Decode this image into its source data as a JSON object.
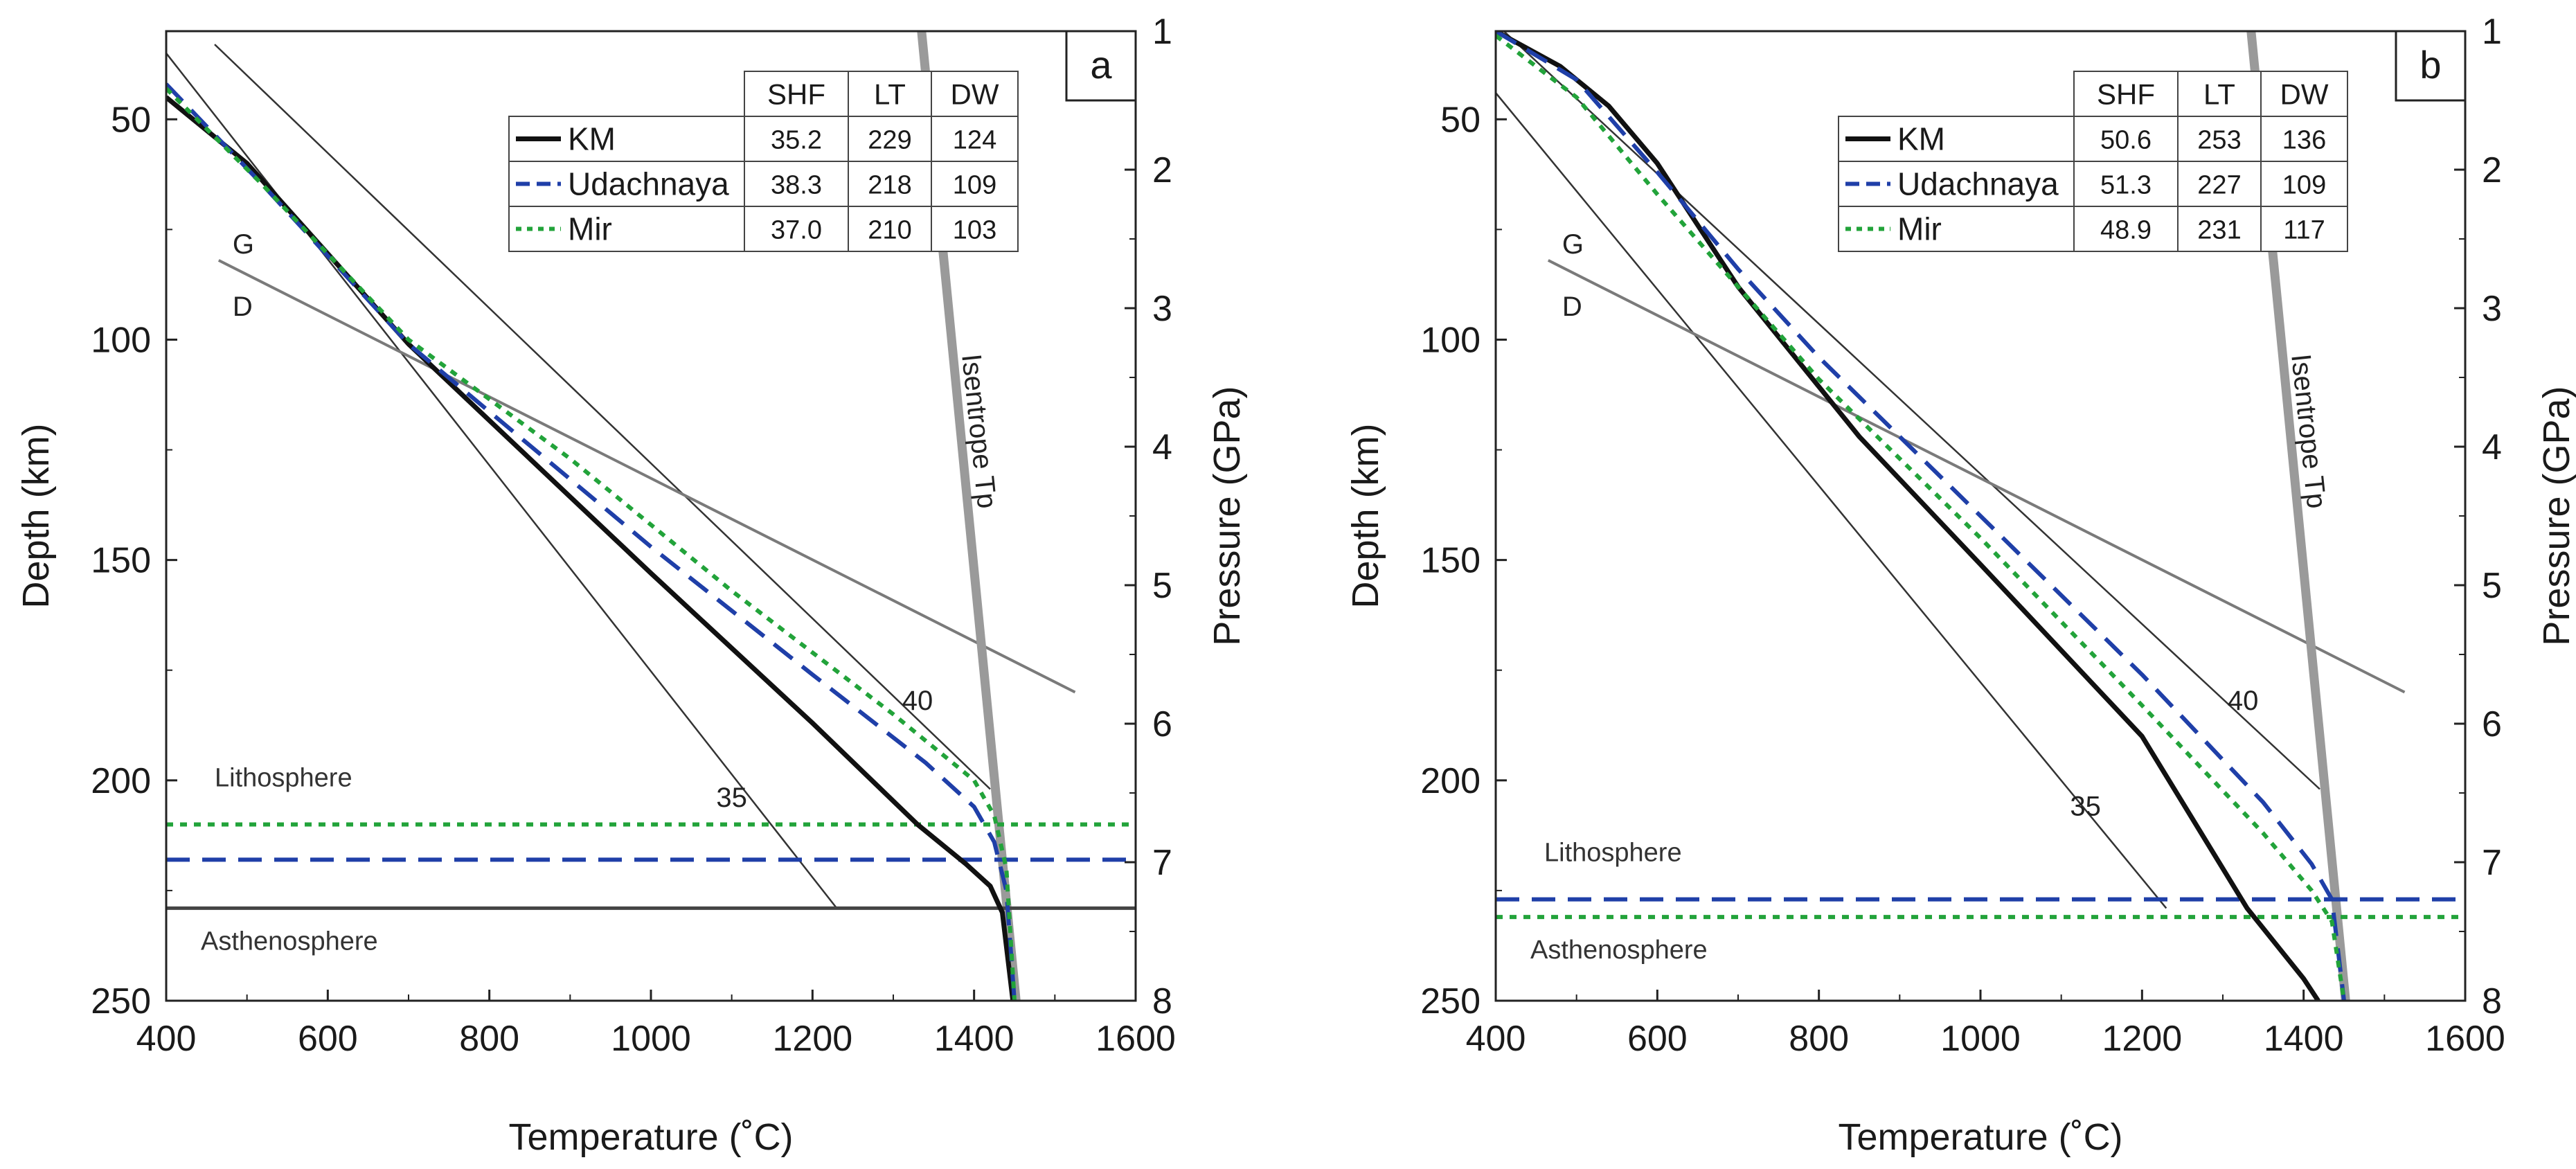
{
  "figure": {
    "axis_x_title": "Temperature (˚C)",
    "axis_y_left_title": "Depth (km)",
    "axis_y_right_title": "Pressure (GPa)"
  },
  "colors": {
    "KM": "#111111",
    "Udachnaya": "#1f3fa8",
    "Mir": "#22a33a",
    "adiabat": "#9a9a9a",
    "geotherm_ref": "#333333",
    "graphite_diamond": "#7a7a7a"
  },
  "chart_data": [
    {
      "type": "line",
      "panel": "a",
      "xlim": [
        400,
        1600
      ],
      "ylim_depth_km": [
        250,
        30
      ],
      "ylim_pressure_gpa": [
        8,
        1
      ],
      "x_ticks": [
        400,
        600,
        800,
        1000,
        1200,
        1400,
        1600
      ],
      "y_ticks_depth": [
        50,
        100,
        150,
        200,
        250
      ],
      "y_ticks_pressure": [
        1,
        2,
        3,
        4,
        5,
        6,
        7,
        8
      ],
      "legend": {
        "headers": [
          "SHF",
          "LT",
          "DW"
        ],
        "rows": [
          {
            "name": "KM",
            "style": "solid",
            "shf": "35.2",
            "lt": "229",
            "dw": "124"
          },
          {
            "name": "Udachnaya",
            "style": "dashed",
            "shf": "38.3",
            "lt": "218",
            "dw": "109"
          },
          {
            "name": "Mir",
            "style": "dotted",
            "shf": "37.0",
            "lt": "210",
            "dw": "103"
          }
        ]
      },
      "series": [
        {
          "name": "KM",
          "points": [
            [
              400,
              45
            ],
            [
              500,
              60
            ],
            [
              700,
              101
            ],
            [
              1000,
              153
            ],
            [
              1200,
              187
            ],
            [
              1330,
              210
            ],
            [
              1390,
              219
            ],
            [
              1420,
              224
            ],
            [
              1435,
              230
            ],
            [
              1448,
              250
            ]
          ]
        },
        {
          "name": "Udachnaya",
          "points": [
            [
              400,
              42
            ],
            [
              520,
              65
            ],
            [
              700,
              101
            ],
            [
              1000,
              147
            ],
            [
              1200,
              176
            ],
            [
              1340,
              196
            ],
            [
              1400,
              206
            ],
            [
              1425,
              214
            ],
            [
              1440,
              225
            ],
            [
              1450,
              250
            ]
          ]
        },
        {
          "name": "Mir",
          "points": [
            [
              400,
              43
            ],
            [
              520,
              65
            ],
            [
              700,
              100
            ],
            [
              900,
              127
            ],
            [
              1100,
              157
            ],
            [
              1300,
              185
            ],
            [
              1400,
              200
            ],
            [
              1425,
              208
            ],
            [
              1440,
              220
            ],
            [
              1450,
              250
            ]
          ]
        }
      ],
      "lab_lines": [
        {
          "series": "Mir",
          "depth_km": 210
        },
        {
          "series": "Udachnaya",
          "depth_km": 218
        },
        {
          "series": "KM",
          "depth_km": 229
        }
      ],
      "reference_geotherms": [
        {
          "label": "35",
          "points": [
            [
              400,
              35
            ],
            [
              1230,
              229
            ]
          ],
          "label_at": [
            1100,
            206
          ]
        },
        {
          "label": "40",
          "points": [
            [
              460,
              33
            ],
            [
              1420,
              202
            ]
          ],
          "label_at": [
            1330,
            184
          ]
        }
      ],
      "graphite_diamond": {
        "points": [
          [
            465,
            82
          ],
          [
            1525,
            180
          ]
        ],
        "labels": [
          "G",
          "D"
        ]
      },
      "isentrope": {
        "label": "Isentrope Tp",
        "points": [
          [
            1335,
            30
          ],
          [
            1452,
            250
          ]
        ]
      },
      "annotations": {
        "lithosphere": "Lithosphere",
        "asthenosphere": "Asthenosphere"
      }
    },
    {
      "type": "line",
      "panel": "b",
      "xlim": [
        400,
        1600
      ],
      "ylim_depth_km": [
        250,
        30
      ],
      "ylim_pressure_gpa": [
        8,
        1
      ],
      "x_ticks": [
        400,
        600,
        800,
        1000,
        1200,
        1400,
        1600
      ],
      "y_ticks_depth": [
        50,
        100,
        150,
        200,
        250
      ],
      "y_ticks_pressure": [
        1,
        2,
        3,
        4,
        5,
        6,
        7,
        8
      ],
      "legend": {
        "headers": [
          "SHF",
          "LT",
          "DW"
        ],
        "rows": [
          {
            "name": "KM",
            "style": "solid",
            "shf": "50.6",
            "lt": "253",
            "dw": "136"
          },
          {
            "name": "Udachnaya",
            "style": "dashed",
            "shf": "51.3",
            "lt": "227",
            "dw": "109"
          },
          {
            "name": "Mir",
            "style": "dotted",
            "shf": "48.9",
            "lt": "231",
            "dw": "117"
          }
        ]
      },
      "series": [
        {
          "name": "KM",
          "points": [
            [
              400,
              30
            ],
            [
              480,
              38
            ],
            [
              540,
              47
            ],
            [
              600,
              60
            ],
            [
              700,
              88
            ],
            [
              850,
              122
            ],
            [
              1000,
              151
            ],
            [
              1200,
              190
            ],
            [
              1330,
              229
            ],
            [
              1400,
              245
            ],
            [
              1418,
              250
            ]
          ]
        },
        {
          "name": "Udachnaya",
          "points": [
            [
              400,
              30
            ],
            [
              500,
              41
            ],
            [
              600,
              62
            ],
            [
              700,
              84
            ],
            [
              800,
              104
            ],
            [
              1000,
              140
            ],
            [
              1200,
              176
            ],
            [
              1350,
              205
            ],
            [
              1410,
              219
            ],
            [
              1435,
              227
            ],
            [
              1450,
              250
            ]
          ]
        },
        {
          "name": "Mir",
          "points": [
            [
              400,
              31
            ],
            [
              500,
              45
            ],
            [
              600,
              67
            ],
            [
              700,
              88
            ],
            [
              800,
              109
            ],
            [
              1000,
              145
            ],
            [
              1200,
              183
            ],
            [
              1350,
              212
            ],
            [
              1410,
              225
            ],
            [
              1435,
              232
            ],
            [
              1450,
              250
            ]
          ]
        }
      ],
      "lab_lines": [
        {
          "series": "Udachnaya",
          "depth_km": 227
        },
        {
          "series": "Mir",
          "depth_km": 231
        }
      ],
      "reference_geotherms": [
        {
          "label": "35",
          "points": [
            [
              400,
              44
            ],
            [
              1230,
              229
            ]
          ],
          "label_at": [
            1130,
            208
          ]
        },
        {
          "label": "40",
          "points": [
            [
              410,
              30
            ],
            [
              1420,
              202
            ]
          ],
          "label_at": [
            1325,
            184
          ]
        }
      ],
      "graphite_diamond": {
        "points": [
          [
            465,
            82
          ],
          [
            1525,
            180
          ]
        ],
        "labels": [
          "G",
          "D"
        ]
      },
      "isentrope": {
        "label": "Isentrope Tp",
        "points": [
          [
            1335,
            30
          ],
          [
            1452,
            250
          ]
        ]
      },
      "annotations": {
        "lithosphere": "Lithosphere",
        "asthenosphere": "Asthenosphere"
      }
    }
  ]
}
